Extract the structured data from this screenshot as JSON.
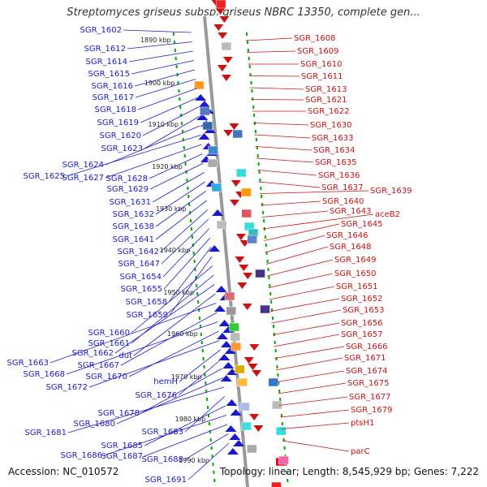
{
  "title": "Streptomyces griseus subsp. griseus NBRC 13350, complete gen...",
  "footer": {
    "accession": "Accession: NC_010572",
    "topology": "Topology: linear; Length: 8,545,929 bp; Genes: 7,222"
  },
  "colors": {
    "left_strand": "#1a1acc",
    "right_strand": "#cc1111",
    "axis": "#999999",
    "scale": "#00aa00"
  },
  "scale_labels": [
    "1890 kbp",
    "1900 kbp",
    "1910 kbp",
    "1920 kbp",
    "1930 kbp",
    "1940 kbp",
    "1950 kbp",
    "1960 kbp",
    "1970 kbp",
    "1980 kbp",
    "1990 kbp"
  ],
  "left_labels": [
    "SGR_1602",
    "SGR_1612",
    "SGR_1614",
    "SGR_1615",
    "SGR_1616",
    "SGR_1617",
    "SGR_1618",
    "SGR_1619",
    "SGR_1620",
    "SGR_1623",
    "SGR_1624",
    "SGR_1625",
    "SGR_1627",
    "SGR_1628",
    "SGR_1629",
    "SGR_1631",
    "SGR_1632",
    "SGR_1638",
    "SGR_1641",
    "SGR_1642",
    "SGR_1647",
    "SGR_1654",
    "SGR_1655",
    "SGR_1658",
    "SGR_1659",
    "SGR_1660",
    "SGR_1661",
    "SGR_1662",
    "dut",
    "SGR_1663",
    "SGR_1667",
    "SGR_1668",
    "SGR_1670",
    "SGR_1672",
    "hemH",
    "SGR_1676",
    "SGR_1678",
    "SGR_1680",
    "SGR_1681",
    "SGR_1683",
    "SGR_1685",
    "SGR_1686",
    "SGR_1687",
    "SGR_1688",
    "SGR_1691"
  ],
  "right_labels": [
    "SGR_1608",
    "SGR_1609",
    "SGR_1610",
    "SGR_1611",
    "SGR_1613",
    "SGR_1621",
    "SGR_1622",
    "SGR_1630",
    "SGR_1633",
    "SGR_1634",
    "SGR_1635",
    "SGR_1636",
    "SGR_1637",
    "SGR_1639",
    "SGR_1640",
    "SGR_1643",
    "aceB2",
    "SGR_1645",
    "SGR_1646",
    "SGR_1648",
    "SGR_1649",
    "SGR_1650",
    "SGR_1651",
    "SGR_1652",
    "SGR_1653",
    "SGR_1656",
    "SGR_1657",
    "SGR_1666",
    "SGR_1671",
    "SGR_1674",
    "SGR_1675",
    "SGR_1677",
    "SGR_1679",
    "ptsH1",
    "parC"
  ]
}
